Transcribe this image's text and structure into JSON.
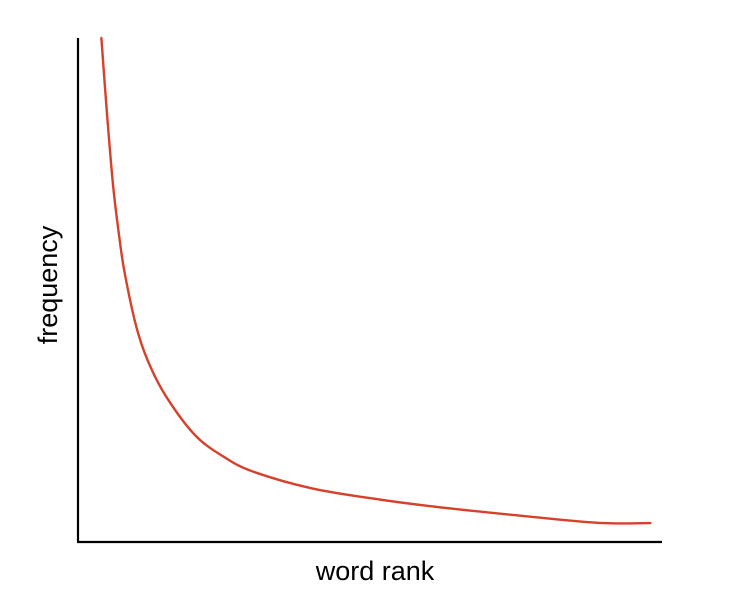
{
  "chart_data": {
    "type": "line",
    "title": "",
    "xlabel": "word rank",
    "ylabel": "frequency",
    "x_ticks": [],
    "y_ticks": [],
    "grid": false,
    "legend": "none",
    "xlim": [
      0,
      100
    ],
    "ylim": [
      0,
      100
    ],
    "series": [
      {
        "color": "#d5412b",
        "x": [
          4,
          5,
          6,
          7,
          8,
          10,
          12,
          15,
          20,
          25,
          30,
          40,
          50,
          60,
          70,
          80,
          90,
          98
        ],
        "y": [
          100,
          84,
          70,
          60,
          52,
          41,
          34,
          27,
          19,
          14.5,
          11.5,
          8.1,
          6.1,
          4.5,
          3.2,
          2.0,
          1.0,
          1.0
        ]
      }
    ]
  }
}
